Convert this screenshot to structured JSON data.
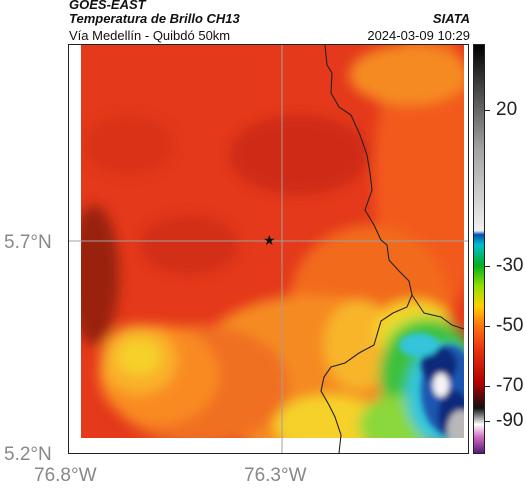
{
  "header": {
    "source": "GOES-EAST",
    "product": "Temperatura de Brillo CH13",
    "region": "Vía Medellín - Quibdó 50km",
    "agency": "SIATA",
    "datetime": "2024-03-09 10:29"
  },
  "axes": {
    "x_ticks": [
      "76.8°W",
      "76.3°W"
    ],
    "y_ticks": [
      "5.7°N",
      "5.2°N"
    ]
  },
  "colorbar": {
    "ticks": [
      "20",
      "-30",
      "-50",
      "-70",
      "-90"
    ],
    "colors": [
      "#5a1a7a",
      "#d070c0",
      "#ffffff",
      "#101010",
      "#b00000",
      "#e83010",
      "#ff7010",
      "#ffd000",
      "#90e000",
      "#00b020",
      "#00c0d0",
      "#0050b0",
      "#f0f0f0",
      "#808080",
      "#000000"
    ]
  },
  "map": {
    "marker": "star-icon",
    "palette": {
      "dark_red": "#b52a10",
      "red": "#e4391b",
      "orange_red": "#f25a1c",
      "orange": "#f98a24",
      "yellow": "#f6d12a",
      "lime": "#b8e63a",
      "green": "#3cc13c",
      "cyan": "#33c5dc",
      "blue": "#1f56b0",
      "navy": "#0d2a7a",
      "white": "#f4f4f4",
      "gray": "#b8b8b8"
    }
  }
}
